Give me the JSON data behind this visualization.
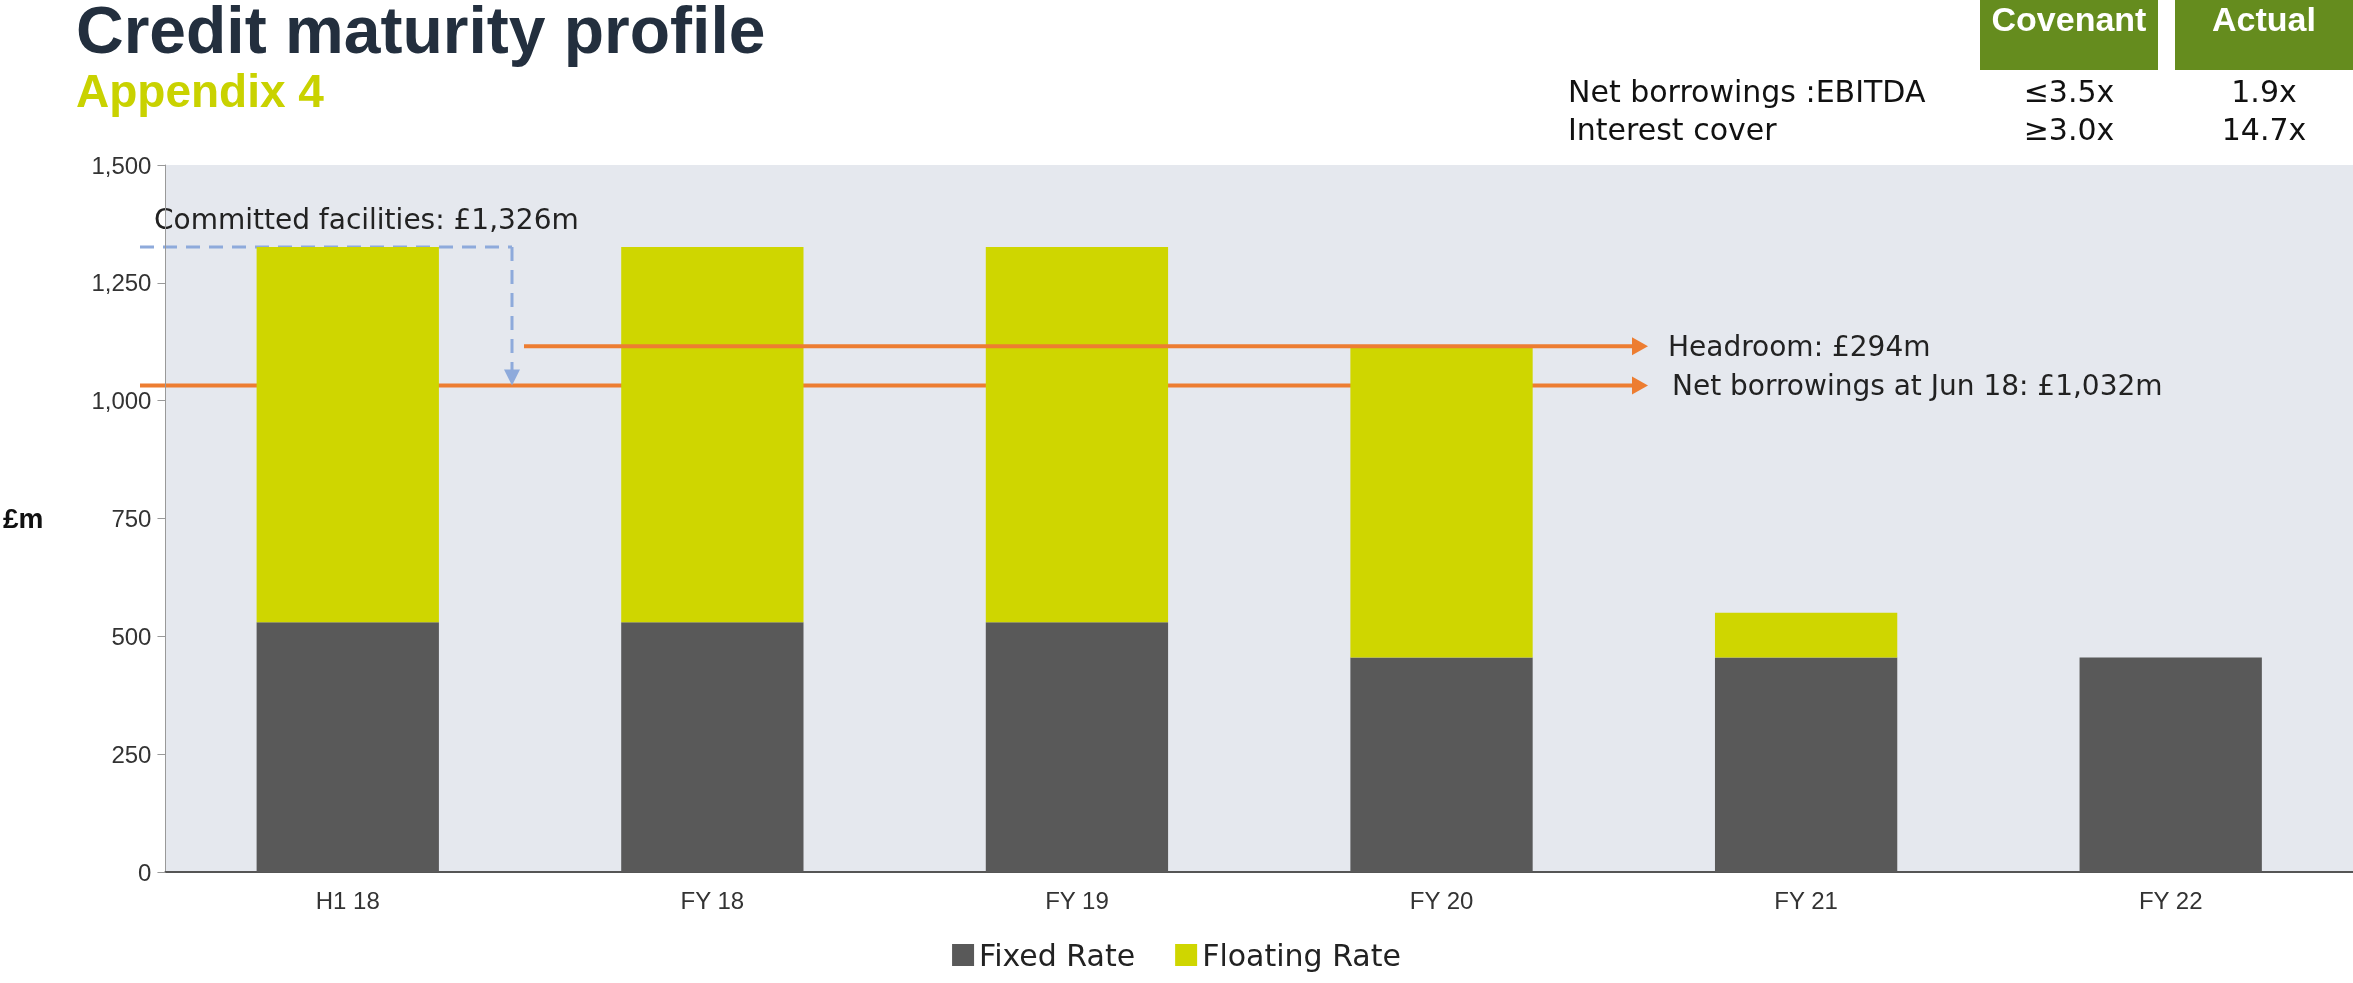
{
  "chart_data": {
    "type": "bar",
    "title": "Credit maturity profile",
    "subtitle": "Appendix 4",
    "ylabel": "£m",
    "categories": [
      "H1 18",
      "FY 18",
      "FY 19",
      "FY 20",
      "FY 21",
      "FY 22"
    ],
    "stacked": true,
    "series": [
      {
        "name": "Fixed Rate",
        "color": "#595959",
        "values": [
          530,
          530,
          530,
          455,
          455,
          455
        ]
      },
      {
        "name": "Floating Rate",
        "color": "#cfd600",
        "values": [
          796,
          796,
          796,
          660,
          95,
          0
        ]
      }
    ],
    "ylim": [
      0,
      1500
    ],
    "yticks": [
      0,
      {
        "value": 250,
        "label": "250"
      },
      {
        "value": 500,
        "label": "500"
      },
      {
        "value": 750,
        "label": "750"
      },
      {
        "value": 1000,
        "label": "1,000"
      },
      {
        "value": 1250,
        "label": "1,250"
      },
      {
        "value": 1500,
        "label": "1,500"
      }
    ],
    "grid": false,
    "legend": "bottom",
    "ref_lines": [
      {
        "axis": "y",
        "value": 1326,
        "label": "Committed facilities: £1,326m",
        "color": "#8eaadb",
        "line_style": "dashed"
      },
      {
        "axis": "y",
        "value": 1032,
        "label": "Net borrowings at Jun 18: £1,032m",
        "color": "#ed7d31",
        "line_style": "solid"
      }
    ],
    "annotations": [
      "Headroom: £294m",
      "Covenant",
      "Actual",
      "Net borrowings :EBITDA",
      "≤3.5x",
      "1.9x",
      "Interest cover",
      "≥3.0x",
      "14.7x"
    ]
  }
}
